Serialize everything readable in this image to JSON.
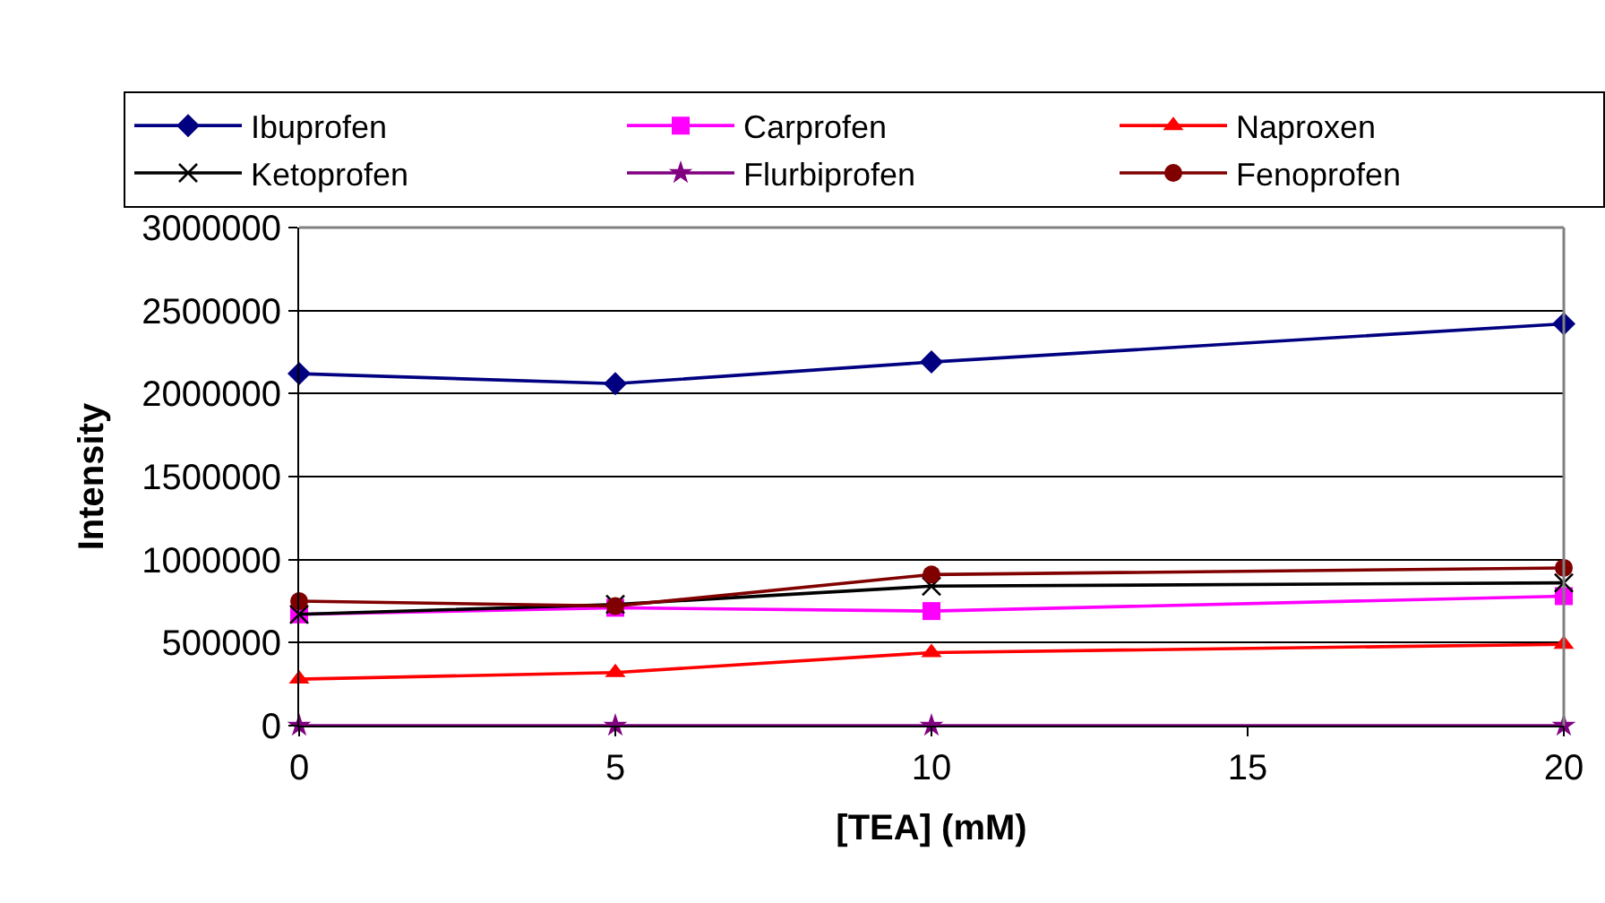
{
  "chart_data": {
    "type": "line",
    "xlabel": "[TEA] (mM)",
    "ylabel": "Intensity",
    "x": [
      0,
      5,
      10,
      20
    ],
    "xlim": [
      0,
      20
    ],
    "xticks": [
      0,
      5,
      10,
      15,
      20
    ],
    "ylim": [
      0,
      3000000
    ],
    "yticks": [
      0,
      500000,
      1000000,
      1500000,
      2000000,
      2500000,
      3000000
    ],
    "grid": "y",
    "legend": "top",
    "series": [
      {
        "name": "Ibuprofen",
        "color": "#000080",
        "marker": "diamond",
        "values": [
          2120000,
          2060000,
          2190000,
          2420000
        ]
      },
      {
        "name": "Carprofen",
        "color": "#ff00ff",
        "marker": "square",
        "values": [
          670000,
          710000,
          690000,
          780000
        ]
      },
      {
        "name": "Naproxen",
        "color": "#ff0000",
        "marker": "triangle",
        "values": [
          280000,
          320000,
          440000,
          490000
        ]
      },
      {
        "name": "Ketoprofen",
        "color": "#000000",
        "marker": "cross",
        "values": [
          670000,
          730000,
          840000,
          860000
        ]
      },
      {
        "name": "Flurbiprofen",
        "color": "#800080",
        "marker": "star",
        "values": [
          0,
          0,
          0,
          0
        ]
      },
      {
        "name": "Fenoprofen",
        "color": "#800000",
        "marker": "circle",
        "values": [
          750000,
          720000,
          910000,
          950000
        ]
      }
    ]
  }
}
